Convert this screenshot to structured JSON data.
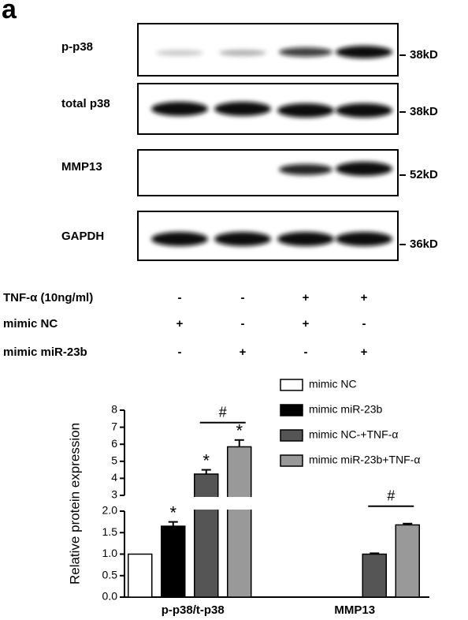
{
  "panel_label": "a",
  "blot": {
    "rows": [
      {
        "label": "p-p38",
        "size": "38kD"
      },
      {
        "label": "total p38",
        "size": "38kD"
      },
      {
        "label": "MMP13",
        "size": "52kD"
      },
      {
        "label": "GAPDH",
        "size": "36kD"
      }
    ]
  },
  "treatments": [
    {
      "label": "TNF-α (10ng/ml)",
      "signs": [
        "-",
        "-",
        "+",
        "+"
      ]
    },
    {
      "label": "mimic NC",
      "signs": [
        "+",
        "-",
        "+",
        "-"
      ]
    },
    {
      "label": "mimic miR-23b",
      "signs": [
        "-",
        "+",
        "-",
        "+"
      ]
    }
  ],
  "chart_data": {
    "type": "bar",
    "y_label": "Relative  protein expression",
    "categories": [
      "p-p38/t-p38",
      "MMP13"
    ],
    "series": [
      {
        "name": "mimic NC",
        "color": "#ffffff",
        "values": [
          1.0,
          null
        ],
        "errors": [
          0,
          null
        ]
      },
      {
        "name": "mimic miR-23b",
        "color": "#000000",
        "values": [
          1.65,
          null
        ],
        "errors": [
          0.1,
          null
        ]
      },
      {
        "name": "mimic NC-+TNF-α",
        "color": "#555555",
        "values": [
          4.25,
          1.0
        ],
        "errors": [
          0.25,
          0.02
        ]
      },
      {
        "name": "mimic miR-23b+TNF-α",
        "color": "#999999",
        "values": [
          5.85,
          1.68
        ],
        "errors": [
          0.4,
          0.03
        ]
      }
    ],
    "ylim": [
      0,
      8
    ],
    "y_break": [
      2,
      3
    ],
    "yticks": [
      {
        "value": 0,
        "label": "0.0"
      },
      {
        "value": 0.5,
        "label": "0.5"
      },
      {
        "value": 1,
        "label": "1.0"
      },
      {
        "value": 1.5,
        "label": "1.5"
      },
      {
        "value": 2,
        "label": "2.0"
      },
      3,
      4,
      5,
      6,
      7,
      8
    ],
    "annotations": [
      {
        "text": "*",
        "category": 0,
        "series": [
          1
        ]
      },
      {
        "text": "*",
        "category": 0,
        "series": [
          2
        ]
      },
      {
        "text": "*",
        "category": 0,
        "series": [
          3
        ]
      },
      {
        "text": "#",
        "category": 0,
        "series": [
          2,
          3
        ]
      },
      {
        "text": "#",
        "category": 1,
        "series": [
          2,
          3
        ]
      }
    ],
    "legend": "top-right"
  }
}
